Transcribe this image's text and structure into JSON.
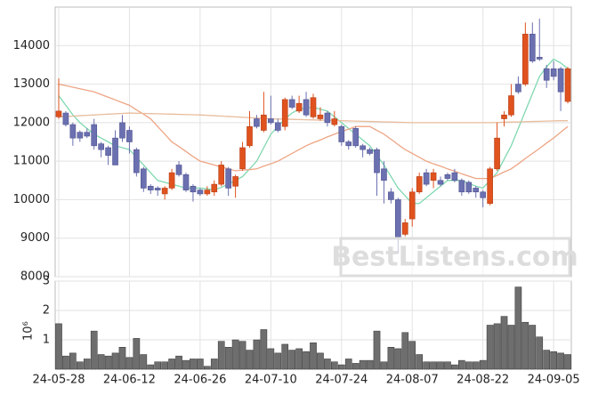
{
  "watermark": "BestListens.com",
  "chart_data": [
    {
      "type": "candlestick",
      "categories": [
        "24-05-28",
        null,
        null,
        null,
        null,
        null,
        null,
        null,
        null,
        null,
        "24-06-12",
        null,
        null,
        null,
        null,
        null,
        null,
        null,
        null,
        null,
        "24-06-26",
        null,
        null,
        null,
        null,
        null,
        null,
        null,
        null,
        null,
        "24-07-10",
        null,
        null,
        null,
        null,
        null,
        null,
        null,
        null,
        null,
        "24-07-24",
        null,
        null,
        null,
        null,
        null,
        null,
        null,
        null,
        null,
        "24-08-07",
        null,
        null,
        null,
        null,
        null,
        null,
        null,
        null,
        null,
        "24-08-22",
        null,
        null,
        null,
        null,
        null,
        null,
        null,
        null,
        null,
        "24-09-05",
        null,
        null
      ],
      "open": [
        12150,
        12250,
        11950,
        11750,
        11750,
        11950,
        11450,
        11350,
        11600,
        12000,
        11800,
        11300,
        10800,
        10350,
        10300,
        10150,
        10300,
        10900,
        10650,
        10350,
        10250,
        10150,
        10200,
        10400,
        10800,
        10350,
        10800,
        11400,
        12100,
        11800,
        12100,
        12000,
        11900,
        12600,
        12300,
        12600,
        12150,
        12100,
        12250,
        11950,
        11900,
        11500,
        11850,
        11400,
        11300,
        11300,
        10800,
        10200,
        10000,
        9100,
        9500,
        10200,
        10700,
        10500,
        10500,
        10650,
        10700,
        10500,
        10450,
        10300,
        10200,
        9900,
        10800,
        12100,
        12200,
        13000,
        13000,
        14300,
        13700,
        13400,
        13400,
        13400,
        12550
      ],
      "high": [
        13150,
        12300,
        12000,
        11800,
        11850,
        12100,
        11500,
        11400,
        11800,
        12200,
        11900,
        11350,
        10850,
        10400,
        10350,
        10350,
        10800,
        11000,
        10700,
        10400,
        10300,
        10350,
        10500,
        11000,
        10850,
        10650,
        11500,
        12300,
        12200,
        12800,
        12700,
        12100,
        12650,
        12700,
        12700,
        12800,
        12750,
        12400,
        12300,
        12300,
        11950,
        11550,
        11900,
        11450,
        11350,
        11350,
        11000,
        10300,
        10050,
        9500,
        10300,
        10700,
        10800,
        10800,
        10600,
        10700,
        10800,
        10550,
        10500,
        10350,
        10250,
        10850,
        12000,
        12300,
        13000,
        13200,
        14600,
        14600,
        14700,
        13500,
        13600,
        13450,
        13450
      ],
      "low": [
        12100,
        11900,
        11400,
        11500,
        11600,
        11300,
        11100,
        10900,
        10900,
        11500,
        11200,
        10600,
        10200,
        10150,
        10100,
        10000,
        10250,
        10600,
        10200,
        9950,
        10100,
        10100,
        10100,
        10350,
        10100,
        10050,
        10750,
        11350,
        11850,
        11750,
        11950,
        11750,
        11800,
        12350,
        12250,
        12150,
        12100,
        12050,
        11900,
        11900,
        11400,
        11300,
        11350,
        11100,
        11150,
        10100,
        9900,
        9900,
        8600,
        9050,
        9300,
        10150,
        10350,
        10300,
        10350,
        10500,
        10450,
        10100,
        10150,
        10050,
        9800,
        9850,
        10750,
        11900,
        12150,
        12750,
        12950,
        13550,
        13600,
        12900,
        13100,
        12300,
        12500
      ],
      "close": [
        12300,
        11950,
        11600,
        11600,
        11650,
        11400,
        11300,
        11150,
        10900,
        11600,
        11500,
        10700,
        10300,
        10250,
        10250,
        10300,
        10700,
        10650,
        10250,
        10200,
        10150,
        10250,
        10400,
        10900,
        10300,
        10600,
        11350,
        11900,
        11900,
        12200,
        12000,
        11800,
        12600,
        12400,
        12500,
        12200,
        12650,
        12200,
        12000,
        12100,
        11500,
        11400,
        11400,
        11300,
        11200,
        10700,
        10500,
        10000,
        9000,
        9400,
        10200,
        10600,
        10400,
        10700,
        10400,
        10550,
        10500,
        10200,
        10200,
        10200,
        10050,
        10800,
        11600,
        12200,
        12700,
        12800,
        14300,
        13600,
        13650,
        13100,
        13200,
        12800,
        13400
      ],
      "up_color": "#e0521e",
      "down_color": "#6b70b0",
      "series": [
        {
          "color": "#7fd8b0",
          "values": [
            12700,
            12450,
            12200,
            12000,
            11850,
            11700,
            11600,
            11500,
            11400,
            11350,
            11300,
            11100,
            10900,
            10700,
            10500,
            10450,
            10400,
            10350,
            10300,
            10300,
            10300,
            10280,
            10250,
            10320,
            10400,
            10500,
            10600,
            10800,
            11000,
            11350,
            11700,
            11900,
            12100,
            12250,
            12350,
            12380,
            12400,
            12350,
            12300,
            12150,
            12000,
            11850,
            11700,
            11550,
            11400,
            11150,
            10900,
            10600,
            10300,
            10100,
            9900,
            9900,
            10050,
            10200,
            10350,
            10500,
            10500,
            10500,
            10420,
            10350,
            10300,
            10500,
            10700,
            11050,
            11400,
            11850,
            12300,
            12750,
            13200,
            13450,
            13650,
            13550,
            13400
          ]
        },
        {
          "color": "#eea584",
          "values": [
            13000,
            12960,
            12920,
            12880,
            12840,
            12800,
            12730,
            12660,
            12590,
            12520,
            12450,
            12330,
            12220,
            12100,
            11900,
            11700,
            11500,
            11380,
            11250,
            11120,
            11000,
            10950,
            10900,
            10850,
            10800,
            10750,
            10770,
            10780,
            10800,
            10870,
            10930,
            11000,
            11100,
            11200,
            11300,
            11400,
            11480,
            11550,
            11630,
            11700,
            11770,
            11830,
            11900,
            11900,
            11900,
            11800,
            11700,
            11570,
            11430,
            11300,
            11200,
            11100,
            11000,
            10930,
            10870,
            10800,
            10740,
            10670,
            10610,
            10550,
            10550,
            10550,
            10630,
            10720,
            10800,
            10930,
            11070,
            11200,
            11330,
            11470,
            11600,
            11750,
            11900
          ]
        },
        {
          "color": "#e8bd9c",
          "values": [
            12150,
            12160,
            12170,
            12180,
            12190,
            12200,
            12210,
            12220,
            12230,
            12240,
            12250,
            12245,
            12240,
            12235,
            12230,
            12225,
            12220,
            12215,
            12210,
            12205,
            12200,
            12190,
            12180,
            12170,
            12160,
            12150,
            12140,
            12130,
            12120,
            12110,
            12100,
            12095,
            12090,
            12085,
            12080,
            12075,
            12070,
            12065,
            12060,
            12055,
            12050,
            12045,
            12040,
            12035,
            12030,
            12025,
            12020,
            12015,
            12010,
            12005,
            12000,
            12000,
            12000,
            12000,
            12000,
            12000,
            12000,
            12000,
            12000,
            12000,
            12000,
            12000,
            12005,
            12010,
            12015,
            12020,
            12025,
            12030,
            12035,
            12040,
            12045,
            12050,
            12050
          ]
        }
      ],
      "ylim": [
        8000,
        15000
      ],
      "yticks": [
        8000,
        9000,
        10000,
        11000,
        12000,
        13000,
        14000
      ],
      "grid": true
    },
    {
      "type": "bar",
      "ylabel": "10⁶",
      "color": "#6e6e6e",
      "values": [
        1.55,
        0.45,
        0.55,
        0.25,
        0.35,
        1.3,
        0.5,
        0.45,
        0.55,
        0.75,
        0.4,
        1.05,
        0.5,
        0.15,
        0.25,
        0.25,
        0.35,
        0.45,
        0.3,
        0.35,
        0.35,
        0.1,
        0.35,
        0.95,
        0.75,
        1.0,
        0.95,
        0.65,
        1.0,
        1.35,
        0.7,
        0.55,
        0.85,
        0.65,
        0.7,
        0.6,
        0.9,
        0.55,
        0.35,
        0.25,
        0.15,
        0.35,
        0.2,
        0.3,
        0.3,
        1.3,
        0.25,
        0.75,
        0.7,
        1.25,
        0.95,
        0.5,
        0.25,
        0.25,
        0.25,
        0.25,
        0.15,
        0.3,
        0.25,
        0.25,
        0.3,
        1.5,
        1.55,
        1.8,
        1.5,
        2.8,
        1.6,
        1.5,
        1.1,
        0.65,
        0.6,
        0.55,
        0.5
      ],
      "ylim": [
        0,
        3
      ],
      "yticks": [
        1,
        2,
        3
      ],
      "grid": true
    }
  ]
}
